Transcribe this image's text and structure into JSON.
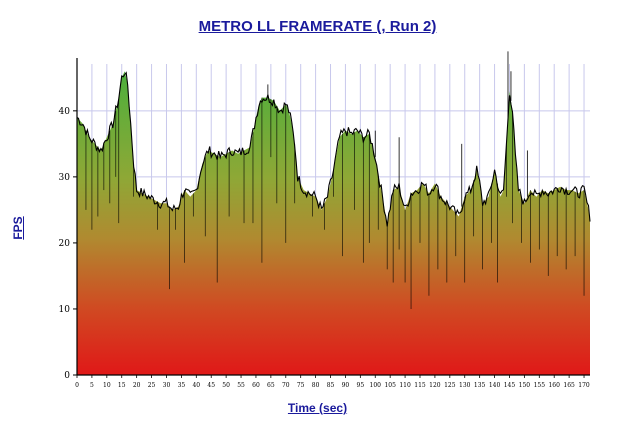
{
  "chart_data": {
    "type": "area",
    "title": "METRO LL FRAMERATE (, Run 2)",
    "xlabel": "Time (sec)",
    "ylabel": "FPS",
    "xlim": [
      0,
      172
    ],
    "ylim": [
      0,
      48
    ],
    "x_ticks": [
      "0",
      "5",
      "10",
      "15",
      "20",
      "25",
      "30",
      "35",
      "40",
      "45",
      "50",
      "55",
      "60",
      "65",
      "70",
      "75",
      "80",
      "85",
      "90",
      "95",
      "100",
      "105",
      "110",
      "115",
      "120",
      "125",
      "130",
      "135",
      "140",
      "145",
      "150",
      "155",
      "160",
      "165",
      "170"
    ],
    "y_ticks": [
      "0",
      "10",
      "20",
      "30",
      "40"
    ],
    "grid": true,
    "colors": {
      "fill_top": "#4caf3c",
      "fill_mid": "#b08a30",
      "fill_bottom": "#e01818",
      "line": "#000000",
      "grid": "#c8c8ec",
      "title": "#1a1a9c"
    },
    "series": [
      {
        "x": [
          0,
          2,
          4,
          6,
          8,
          10,
          12,
          14,
          15,
          16,
          17,
          18,
          19,
          20,
          22,
          24,
          26,
          28,
          30,
          32,
          34,
          35,
          36,
          38,
          40,
          42,
          44,
          46,
          48,
          50,
          52,
          54,
          56,
          58,
          60,
          61,
          62,
          64,
          66,
          68,
          70,
          71,
          72,
          73,
          74,
          76,
          78,
          80,
          82,
          84,
          86,
          88,
          90,
          92,
          94,
          96,
          98,
          100,
          102,
          104,
          106,
          108,
          110,
          112,
          114,
          116,
          118,
          120,
          122,
          124,
          126,
          128,
          130,
          132,
          134,
          135,
          136,
          138,
          140,
          142,
          143,
          144,
          145,
          146,
          147,
          148,
          150,
          152,
          154,
          156,
          158,
          160,
          162,
          164,
          166,
          168,
          170,
          172
        ],
        "values": [
          39,
          38,
          36,
          35,
          34,
          36,
          38,
          42,
          45,
          46,
          44,
          38,
          32,
          28,
          27.5,
          27,
          26.5,
          26,
          26,
          25,
          25.5,
          27,
          28,
          27,
          28,
          32,
          34,
          33.5,
          33,
          33.5,
          34,
          33.5,
          34,
          34.5,
          39,
          41,
          42,
          42,
          41.5,
          40,
          41,
          40,
          38,
          35,
          30,
          28,
          27.5,
          27,
          25,
          27,
          31,
          36,
          37,
          36.5,
          37,
          36,
          36.5,
          33,
          28,
          23,
          28,
          28.5,
          25,
          27.5,
          28,
          29,
          27.5,
          29,
          27,
          26,
          25,
          24,
          27,
          28,
          31,
          29,
          26,
          27,
          31,
          27,
          28,
          35,
          43,
          40,
          33,
          28,
          26,
          28,
          27,
          28,
          27.5,
          28,
          28.5,
          28,
          28,
          27.5,
          28,
          24
        ]
      }
    ],
    "spikes": [
      [
        3,
        25
      ],
      [
        5,
        22
      ],
      [
        7,
        24
      ],
      [
        9,
        28
      ],
      [
        11,
        26
      ],
      [
        13,
        30
      ],
      [
        14,
        23
      ],
      [
        19,
        27
      ],
      [
        27,
        22
      ],
      [
        31,
        13
      ],
      [
        33,
        22
      ],
      [
        36,
        17
      ],
      [
        39,
        24
      ],
      [
        43,
        21
      ],
      [
        47,
        14
      ],
      [
        51,
        24
      ],
      [
        56,
        23
      ],
      [
        59,
        23
      ],
      [
        62,
        17
      ],
      [
        65,
        33
      ],
      [
        67,
        26
      ],
      [
        70,
        20
      ],
      [
        73,
        26
      ],
      [
        79,
        24
      ],
      [
        83,
        22
      ],
      [
        86,
        27
      ],
      [
        89,
        18
      ],
      [
        93,
        25
      ],
      [
        96,
        17
      ],
      [
        98,
        20
      ],
      [
        101,
        22
      ],
      [
        104,
        16
      ],
      [
        106,
        14
      ],
      [
        108,
        19
      ],
      [
        110,
        14
      ],
      [
        112,
        10
      ],
      [
        115,
        20
      ],
      [
        118,
        12
      ],
      [
        121,
        16
      ],
      [
        124,
        14
      ],
      [
        127,
        18
      ],
      [
        130,
        14
      ],
      [
        133,
        21
      ],
      [
        136,
        16
      ],
      [
        139,
        20
      ],
      [
        141,
        14
      ],
      [
        144,
        27
      ],
      [
        146,
        23
      ],
      [
        149,
        20
      ],
      [
        152,
        17
      ],
      [
        155,
        19
      ],
      [
        158,
        15
      ],
      [
        161,
        18
      ],
      [
        164,
        16
      ],
      [
        167,
        18
      ],
      [
        170,
        12
      ]
    ],
    "peaks": [
      [
        100,
        37
      ],
      [
        108,
        36
      ],
      [
        129,
        35
      ],
      [
        144.5,
        49
      ],
      [
        145.5,
        46
      ],
      [
        151,
        34
      ],
      [
        64,
        44
      ]
    ]
  }
}
